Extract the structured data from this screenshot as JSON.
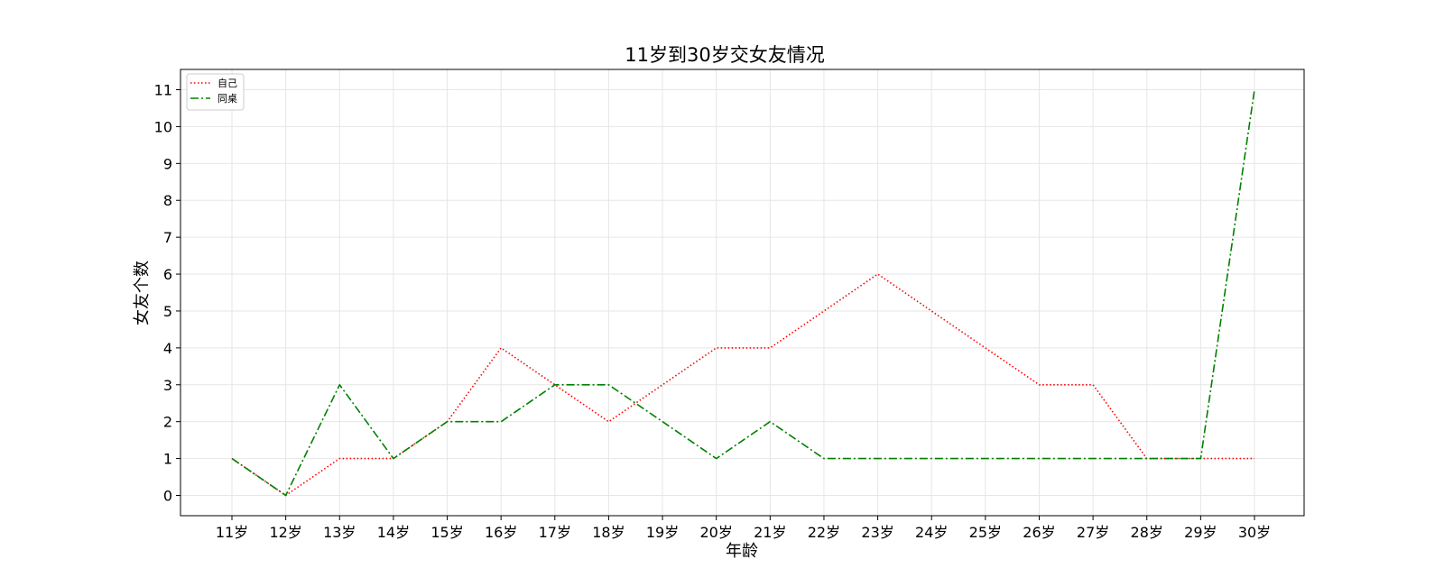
{
  "chart_data": {
    "type": "line",
    "title": "11岁到30岁交女友情况",
    "xlabel": "年龄",
    "ylabel": "女友个数",
    "categories": [
      "11岁",
      "12岁",
      "13岁",
      "14岁",
      "15岁",
      "16岁",
      "17岁",
      "18岁",
      "19岁",
      "20岁",
      "21岁",
      "22岁",
      "23岁",
      "24岁",
      "25岁",
      "26岁",
      "27岁",
      "28岁",
      "29岁",
      "30岁"
    ],
    "yticks": [
      "0",
      "1",
      "2",
      "3",
      "4",
      "5",
      "6",
      "7",
      "8",
      "9",
      "10",
      "11"
    ],
    "ylim": [
      -0.55,
      11.55
    ],
    "grid": true,
    "legend_position": "top-left",
    "series": [
      {
        "name": "自己",
        "color": "#ff0000",
        "line_style": "dotted",
        "values": [
          1,
          0,
          1,
          1,
          2,
          4,
          3,
          2,
          3,
          4,
          4,
          5,
          6,
          5,
          4,
          3,
          3,
          1,
          1,
          1
        ]
      },
      {
        "name": "同桌",
        "color": "#008000",
        "line_style": "dashdot",
        "values": [
          1,
          0,
          3,
          1,
          2,
          2,
          3,
          3,
          2,
          1,
          2,
          1,
          1,
          1,
          1,
          1,
          1,
          1,
          1,
          11
        ]
      }
    ]
  }
}
